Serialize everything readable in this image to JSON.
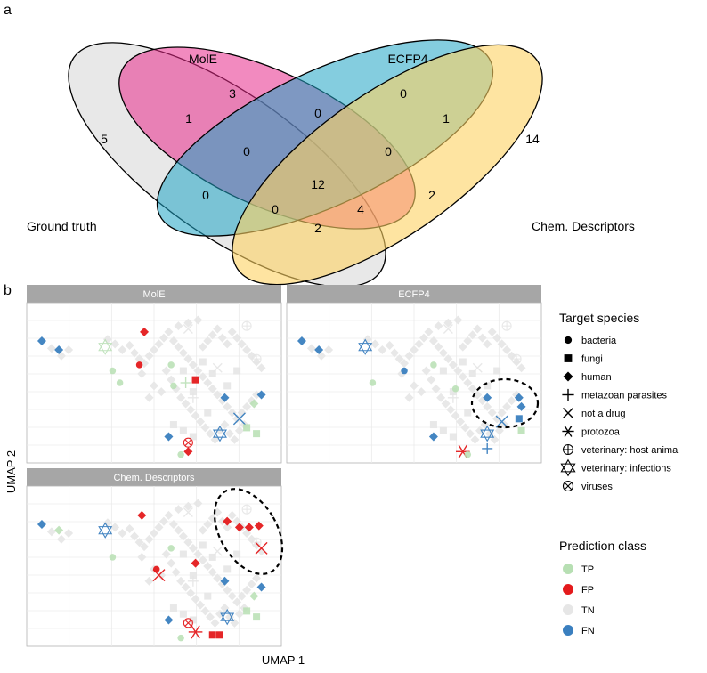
{
  "panels": {
    "a": "a",
    "b": "b"
  },
  "venn": {
    "type": "venn",
    "sets": [
      {
        "name": "Ground truth",
        "color": "#d9d9d9"
      },
      {
        "name": "MolE",
        "color": "#e7298a"
      },
      {
        "name": "ECFP4",
        "color": "#1fa4c4"
      },
      {
        "name": "Chem. Descriptors",
        "color": "#fdd262"
      }
    ],
    "regions": [
      {
        "sets": [
          "Ground truth"
        ],
        "count": 5
      },
      {
        "sets": [
          "MolE"
        ],
        "count": 3
      },
      {
        "sets": [
          "ECFP4"
        ],
        "count": 0
      },
      {
        "sets": [
          "Chem. Descriptors"
        ],
        "count": 14
      },
      {
        "sets": [
          "Ground truth",
          "MolE"
        ],
        "count": 1
      },
      {
        "sets": [
          "MolE",
          "ECFP4"
        ],
        "count": 0
      },
      {
        "sets": [
          "ECFP4",
          "Chem. Descriptors"
        ],
        "count": 1
      },
      {
        "sets": [
          "Ground truth",
          "MolE",
          "ECFP4"
        ],
        "count": 0
      },
      {
        "sets": [
          "MolE",
          "ECFP4",
          "Chem. Descriptors"
        ],
        "count": 0
      },
      {
        "sets": [
          "Ground truth",
          "ECFP4"
        ],
        "count": 0
      },
      {
        "sets": [
          "Ground truth",
          "MolE",
          "ECFP4",
          "Chem. Descriptors"
        ],
        "count": 12
      },
      {
        "sets": [
          "MolE",
          "Chem. Descriptors"
        ],
        "count": 2
      },
      {
        "sets": [
          "Ground truth",
          "ECFP4",
          "Chem. Descriptors"
        ],
        "count": 0
      },
      {
        "sets": [
          "Ground truth",
          "MolE",
          "Chem. Descriptors"
        ],
        "count": 4
      },
      {
        "sets": [
          "Ground truth",
          "Chem. Descriptors"
        ],
        "count": 2
      }
    ]
  },
  "chart_data": {
    "type": "scatter",
    "xlabel": "UMAP 1",
    "ylabel": "UMAP 2",
    "facets": [
      "MolE",
      "ECFP4",
      "Chem. Descriptors"
    ],
    "xlim": [
      0,
      100
    ],
    "ylim": [
      0,
      100
    ],
    "grid": true,
    "legend": {
      "placement": "right",
      "shape_title": "Target species",
      "shapes": [
        {
          "label": "bacteria",
          "shape": "circle"
        },
        {
          "label": "fungi",
          "shape": "square"
        },
        {
          "label": "human",
          "shape": "diamond"
        },
        {
          "label": "metazoan parasites",
          "shape": "plus"
        },
        {
          "label": "not a drug",
          "shape": "cross"
        },
        {
          "label": "protozoa",
          "shape": "asterisk"
        },
        {
          "label": "veterinary: host animal",
          "shape": "circle-plus"
        },
        {
          "label": "veterinary: infections",
          "shape": "star-of-david"
        },
        {
          "label": "viruses",
          "shape": "circle-cross"
        }
      ],
      "class_title": "Prediction class",
      "classes": [
        {
          "label": "TP",
          "color": "#b7dfb3"
        },
        {
          "label": "FP",
          "color": "#e41a1c"
        },
        {
          "label": "TN",
          "color": "#e6e6e6"
        },
        {
          "label": "FN",
          "color": "#3a7fbf"
        }
      ]
    },
    "tn_points": [
      [
        8,
        73,
        "diamond"
      ],
      [
        12,
        68,
        "diamond"
      ],
      [
        15,
        72,
        "diamond"
      ],
      [
        31,
        79,
        "diamond"
      ],
      [
        34,
        76,
        "diamond"
      ],
      [
        37,
        72,
        "diamond"
      ],
      [
        40,
        75,
        "diamond"
      ],
      [
        42,
        70,
        "diamond"
      ],
      [
        44,
        66,
        "diamond"
      ],
      [
        46,
        63,
        "diamond"
      ],
      [
        48,
        68,
        "diamond"
      ],
      [
        50,
        72,
        "diamond"
      ],
      [
        52,
        76,
        "diamond"
      ],
      [
        54,
        80,
        "diamond"
      ],
      [
        56,
        84,
        "diamond"
      ],
      [
        58,
        78,
        "diamond"
      ],
      [
        60,
        74,
        "diamond"
      ],
      [
        62,
        70,
        "diamond"
      ],
      [
        64,
        66,
        "diamond"
      ],
      [
        66,
        62,
        "diamond"
      ],
      [
        68,
        58,
        "diamond"
      ],
      [
        70,
        54,
        "diamond"
      ],
      [
        72,
        50,
        "diamond"
      ],
      [
        74,
        46,
        "diamond"
      ],
      [
        76,
        42,
        "diamond"
      ],
      [
        78,
        38,
        "diamond"
      ],
      [
        80,
        34,
        "diamond"
      ],
      [
        82,
        30,
        "diamond"
      ],
      [
        84,
        26,
        "diamond"
      ],
      [
        86,
        30,
        "diamond"
      ],
      [
        88,
        34,
        "diamond"
      ],
      [
        90,
        38,
        "diamond"
      ],
      [
        92,
        42,
        "diamond"
      ],
      [
        55,
        58,
        "diamond"
      ],
      [
        57,
        52,
        "diamond"
      ],
      [
        59,
        46,
        "diamond"
      ],
      [
        61,
        40,
        "diamond"
      ],
      [
        63,
        36,
        "diamond"
      ],
      [
        65,
        32,
        "diamond"
      ],
      [
        67,
        28,
        "diamond"
      ],
      [
        69,
        24,
        "diamond"
      ],
      [
        71,
        20,
        "diamond"
      ],
      [
        73,
        16,
        "diamond"
      ],
      [
        75,
        12,
        "diamond"
      ],
      [
        77,
        18,
        "diamond"
      ],
      [
        79,
        22,
        "diamond"
      ],
      [
        81,
        16,
        "diamond"
      ],
      [
        83,
        12,
        "diamond"
      ],
      [
        85,
        18,
        "diamond"
      ],
      [
        87,
        22,
        "diamond"
      ],
      [
        70,
        74,
        "diamond"
      ],
      [
        72,
        78,
        "diamond"
      ],
      [
        74,
        82,
        "diamond"
      ],
      [
        76,
        86,
        "diamond"
      ],
      [
        78,
        80,
        "diamond"
      ],
      [
        80,
        76,
        "diamond"
      ],
      [
        82,
        84,
        "diamond"
      ],
      [
        84,
        80,
        "diamond"
      ],
      [
        86,
        76,
        "diamond"
      ],
      [
        88,
        72,
        "diamond"
      ],
      [
        90,
        68,
        "diamond"
      ],
      [
        92,
        64,
        "diamond"
      ],
      [
        94,
        60,
        "diamond"
      ],
      [
        60,
        88,
        "diamond"
      ],
      [
        64,
        90,
        "diamond"
      ],
      [
        68,
        92,
        "diamond"
      ],
      [
        45,
        56,
        "diamond"
      ],
      [
        50,
        48,
        "diamond"
      ],
      [
        53,
        44,
        "diamond"
      ],
      [
        48,
        40,
        "diamond"
      ],
      [
        62,
        58,
        "square"
      ],
      [
        70,
        64,
        "square"
      ],
      [
        74,
        56,
        "square"
      ],
      [
        80,
        48,
        "square"
      ],
      [
        66,
        44,
        "square"
      ],
      [
        72,
        30,
        "square"
      ],
      [
        58,
        22,
        "square"
      ],
      [
        62,
        18,
        "square"
      ],
      [
        66,
        14,
        "square"
      ],
      [
        84,
        58,
        "square"
      ],
      [
        88,
        88,
        "circle-plus"
      ],
      [
        92,
        66,
        "circle-plus"
      ],
      [
        64,
        86,
        "cross"
      ],
      [
        66,
        40,
        "plus"
      ],
      [
        76,
        60,
        "cross"
      ]
    ],
    "points": [
      {
        "facet": "MolE",
        "x": 4,
        "y": 78,
        "shape": "diamond",
        "class": "FN"
      },
      {
        "facet": "MolE",
        "x": 11,
        "y": 72,
        "shape": "diamond",
        "class": "FN"
      },
      {
        "facet": "MolE",
        "x": 30,
        "y": 74,
        "shape": "star-of-david",
        "class": "TP"
      },
      {
        "facet": "MolE",
        "x": 33,
        "y": 58,
        "shape": "circle",
        "class": "TP"
      },
      {
        "facet": "MolE",
        "x": 46,
        "y": 84,
        "shape": "diamond",
        "class": "FP"
      },
      {
        "facet": "MolE",
        "x": 44,
        "y": 62,
        "shape": "circle",
        "class": "FP"
      },
      {
        "facet": "MolE",
        "x": 57,
        "y": 62,
        "shape": "circle",
        "class": "TP"
      },
      {
        "facet": "MolE",
        "x": 58,
        "y": 48,
        "shape": "circle",
        "class": "TP"
      },
      {
        "facet": "MolE",
        "x": 67,
        "y": 52,
        "shape": "square",
        "class": "FP"
      },
      {
        "facet": "MolE",
        "x": 63,
        "y": 50,
        "shape": "plus",
        "class": "TP"
      },
      {
        "facet": "MolE",
        "x": 79,
        "y": 40,
        "shape": "diamond",
        "class": "FN"
      },
      {
        "facet": "MolE",
        "x": 94,
        "y": 42,
        "shape": "diamond",
        "class": "FN"
      },
      {
        "facet": "MolE",
        "x": 91,
        "y": 36,
        "shape": "diamond",
        "class": "TP"
      },
      {
        "facet": "MolE",
        "x": 85,
        "y": 26,
        "shape": "cross",
        "class": "FN"
      },
      {
        "facet": "MolE",
        "x": 77,
        "y": 16,
        "shape": "star-of-david",
        "class": "FN"
      },
      {
        "facet": "MolE",
        "x": 56,
        "y": 14,
        "shape": "diamond",
        "class": "FN"
      },
      {
        "facet": "MolE",
        "x": 64,
        "y": 10,
        "shape": "circle-cross",
        "class": "FP"
      },
      {
        "facet": "MolE",
        "x": 64,
        "y": 4,
        "shape": "diamond",
        "class": "FP"
      },
      {
        "facet": "MolE",
        "x": 61,
        "y": 2,
        "shape": "circle",
        "class": "TP"
      },
      {
        "facet": "MolE",
        "x": 88,
        "y": 20,
        "shape": "square",
        "class": "TP"
      },
      {
        "facet": "MolE",
        "x": 92,
        "y": 16,
        "shape": "square",
        "class": "TP"
      },
      {
        "facet": "MolE",
        "x": 36,
        "y": 50,
        "shape": "circle",
        "class": "TP"
      },
      {
        "facet": "ECFP4",
        "x": 4,
        "y": 78,
        "shape": "diamond",
        "class": "FN"
      },
      {
        "facet": "ECFP4",
        "x": 11,
        "y": 72,
        "shape": "diamond",
        "class": "FN"
      },
      {
        "facet": "ECFP4",
        "x": 30,
        "y": 74,
        "shape": "star-of-david",
        "class": "FN"
      },
      {
        "facet": "ECFP4",
        "x": 46,
        "y": 58,
        "shape": "circle",
        "class": "FN"
      },
      {
        "facet": "ECFP4",
        "x": 33,
        "y": 50,
        "shape": "circle",
        "class": "TP"
      },
      {
        "facet": "ECFP4",
        "x": 58,
        "y": 62,
        "shape": "circle",
        "class": "TP"
      },
      {
        "facet": "ECFP4",
        "x": 67,
        "y": 46,
        "shape": "circle",
        "class": "TP"
      },
      {
        "facet": "ECFP4",
        "x": 80,
        "y": 40,
        "shape": "diamond",
        "class": "FN"
      },
      {
        "facet": "ECFP4",
        "x": 93,
        "y": 40,
        "shape": "diamond",
        "class": "FN"
      },
      {
        "facet": "ECFP4",
        "x": 94,
        "y": 34,
        "shape": "diamond",
        "class": "FN"
      },
      {
        "facet": "ECFP4",
        "x": 93,
        "y": 26,
        "shape": "square",
        "class": "FN"
      },
      {
        "facet": "ECFP4",
        "x": 86,
        "y": 24,
        "shape": "cross",
        "class": "FN"
      },
      {
        "facet": "ECFP4",
        "x": 80,
        "y": 16,
        "shape": "star-of-david",
        "class": "FN"
      },
      {
        "facet": "ECFP4",
        "x": 80,
        "y": 6,
        "shape": "plus",
        "class": "FN"
      },
      {
        "facet": "ECFP4",
        "x": 58,
        "y": 14,
        "shape": "diamond",
        "class": "FN"
      },
      {
        "facet": "ECFP4",
        "x": 70,
        "y": 4,
        "shape": "asterisk",
        "class": "FP"
      },
      {
        "facet": "ECFP4",
        "x": 72,
        "y": 2,
        "shape": "circle",
        "class": "TP"
      },
      {
        "facet": "ECFP4",
        "x": 94,
        "y": 18,
        "shape": "square",
        "class": "TP"
      },
      {
        "facet": "Chem. Descriptors",
        "x": 4,
        "y": 78,
        "shape": "diamond",
        "class": "FN"
      },
      {
        "facet": "Chem. Descriptors",
        "x": 11,
        "y": 74,
        "shape": "diamond",
        "class": "TP"
      },
      {
        "facet": "Chem. Descriptors",
        "x": 30,
        "y": 74,
        "shape": "star-of-david",
        "class": "FN"
      },
      {
        "facet": "Chem. Descriptors",
        "x": 33,
        "y": 56,
        "shape": "circle",
        "class": "TP"
      },
      {
        "facet": "Chem. Descriptors",
        "x": 45,
        "y": 84,
        "shape": "diamond",
        "class": "FP"
      },
      {
        "facet": "Chem. Descriptors",
        "x": 51,
        "y": 48,
        "shape": "circle",
        "class": "FP"
      },
      {
        "facet": "Chem. Descriptors",
        "x": 52,
        "y": 44,
        "shape": "cross",
        "class": "FP"
      },
      {
        "facet": "Chem. Descriptors",
        "x": 57,
        "y": 62,
        "shape": "circle",
        "class": "TP"
      },
      {
        "facet": "Chem. Descriptors",
        "x": 67,
        "y": 52,
        "shape": "diamond",
        "class": "FP"
      },
      {
        "facet": "Chem. Descriptors",
        "x": 80,
        "y": 80,
        "shape": "diamond",
        "class": "FP"
      },
      {
        "facet": "Chem. Descriptors",
        "x": 85,
        "y": 76,
        "shape": "diamond",
        "class": "FP"
      },
      {
        "facet": "Chem. Descriptors",
        "x": 89,
        "y": 76,
        "shape": "diamond",
        "class": "FP"
      },
      {
        "facet": "Chem. Descriptors",
        "x": 93,
        "y": 77,
        "shape": "diamond",
        "class": "FP"
      },
      {
        "facet": "Chem. Descriptors",
        "x": 94,
        "y": 62,
        "shape": "cross",
        "class": "FP"
      },
      {
        "facet": "Chem. Descriptors",
        "x": 79,
        "y": 40,
        "shape": "diamond",
        "class": "FN"
      },
      {
        "facet": "Chem. Descriptors",
        "x": 94,
        "y": 36,
        "shape": "diamond",
        "class": "FN"
      },
      {
        "facet": "Chem. Descriptors",
        "x": 91,
        "y": 30,
        "shape": "diamond",
        "class": "TP"
      },
      {
        "facet": "Chem. Descriptors",
        "x": 80,
        "y": 16,
        "shape": "star-of-david",
        "class": "FN"
      },
      {
        "facet": "Chem. Descriptors",
        "x": 56,
        "y": 14,
        "shape": "diamond",
        "class": "FN"
      },
      {
        "facet": "Chem. Descriptors",
        "x": 64,
        "y": 12,
        "shape": "circle-cross",
        "class": "FP"
      },
      {
        "facet": "Chem. Descriptors",
        "x": 67,
        "y": 6,
        "shape": "asterisk",
        "class": "FP"
      },
      {
        "facet": "Chem. Descriptors",
        "x": 74,
        "y": 4,
        "shape": "square",
        "class": "FP"
      },
      {
        "facet": "Chem. Descriptors",
        "x": 77,
        "y": 4,
        "shape": "square",
        "class": "FP"
      },
      {
        "facet": "Chem. Descriptors",
        "x": 61,
        "y": 2,
        "shape": "circle",
        "class": "TP"
      },
      {
        "facet": "Chem. Descriptors",
        "x": 88,
        "y": 20,
        "shape": "square",
        "class": "TP"
      },
      {
        "facet": "Chem. Descriptors",
        "x": 92,
        "y": 16,
        "shape": "square",
        "class": "TP"
      }
    ]
  }
}
